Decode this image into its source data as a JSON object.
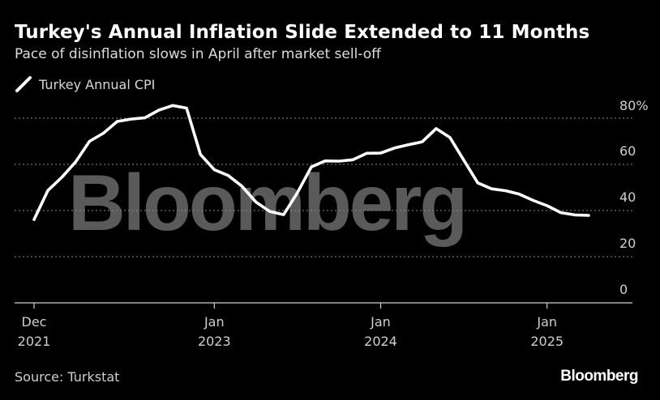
{
  "header": {
    "title": "Turkey's Annual Inflation Slide Extended to 11 Months",
    "subtitle": "Pace of disinflation slows in April after market sell-off"
  },
  "legend": {
    "label": "Turkey Annual CPI",
    "color": "#ffffff"
  },
  "footer": {
    "source": "Source: Turkstat",
    "brand": "Bloomberg"
  },
  "watermark": "Bloomberg",
  "chart_data": {
    "type": "line",
    "title": "Turkey's Annual Inflation Slide Extended to 11 Months",
    "subtitle": "Pace of disinflation slows in April after market sell-off",
    "xlabel": "",
    "ylabel": "",
    "ylim": [
      0,
      80
    ],
    "y_ticks": [
      0,
      20,
      40,
      60,
      80
    ],
    "y_tick_labels": [
      "0",
      "20",
      "40",
      "60",
      "80%"
    ],
    "x_ticks": [
      {
        "date": "2021-12",
        "line1": "Dec",
        "line2": "2021"
      },
      {
        "date": "2023-01",
        "line1": "Jan",
        "line2": "2023"
      },
      {
        "date": "2024-01",
        "line1": "Jan",
        "line2": "2024"
      },
      {
        "date": "2025-01",
        "line1": "Jan",
        "line2": "2025"
      }
    ],
    "grid": true,
    "legend_position": "top-left",
    "series": [
      {
        "name": "Turkey Annual CPI",
        "color": "#ffffff",
        "x": [
          "2021-12",
          "2022-01",
          "2022-02",
          "2022-03",
          "2022-04",
          "2022-05",
          "2022-06",
          "2022-07",
          "2022-08",
          "2022-09",
          "2022-10",
          "2022-11",
          "2022-12",
          "2023-01",
          "2023-02",
          "2023-03",
          "2023-04",
          "2023-05",
          "2023-06",
          "2023-07",
          "2023-08",
          "2023-09",
          "2023-10",
          "2023-11",
          "2023-12",
          "2024-01",
          "2024-02",
          "2024-03",
          "2024-04",
          "2024-05",
          "2024-06",
          "2024-07",
          "2024-08",
          "2024-09",
          "2024-10",
          "2024-11",
          "2024-12",
          "2025-01",
          "2025-02",
          "2025-03",
          "2025-04"
        ],
        "values": [
          36.1,
          48.7,
          54.4,
          61.1,
          70.0,
          73.5,
          78.6,
          79.6,
          80.2,
          83.5,
          85.5,
          84.4,
          64.3,
          57.7,
          55.2,
          50.5,
          43.7,
          39.6,
          38.2,
          47.8,
          58.9,
          61.5,
          61.4,
          62.0,
          64.8,
          64.9,
          67.1,
          68.5,
          69.8,
          75.5,
          71.6,
          61.8,
          52.0,
          49.4,
          48.6,
          47.1,
          44.4,
          42.1,
          39.1,
          38.1,
          37.9
        ]
      }
    ]
  }
}
